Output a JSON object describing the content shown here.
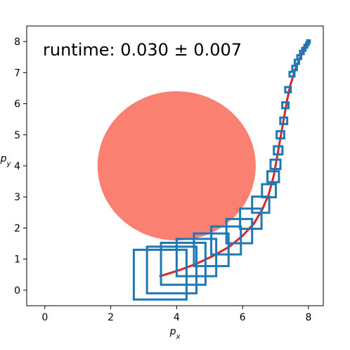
{
  "chart_data": {
    "type": "scatter",
    "title": "",
    "annotation": "runtime: 0.030 ± 0.007",
    "xlabel_base": "p",
    "xlabel_sub": "x",
    "ylabel_base": "p",
    "ylabel_sub": "y",
    "xlim": [
      -0.55,
      8.45
    ],
    "ylim": [
      -0.5,
      8.5
    ],
    "xticks": [
      0,
      2,
      4,
      6,
      8
    ],
    "yticks": [
      0,
      1,
      2,
      3,
      4,
      5,
      6,
      7,
      8
    ],
    "grid": false,
    "obstacle": {
      "cx": 4.0,
      "cy": 4.0,
      "rx": 2.4,
      "ry": 2.4,
      "color": "#fa8072"
    },
    "trajectory": {
      "color": "#d62728",
      "x": [
        3.5,
        4.1,
        4.6,
        5.1,
        5.6,
        6.0,
        6.35,
        6.6,
        6.8,
        6.95,
        7.05,
        7.15,
        7.25,
        7.35,
        7.45,
        7.6,
        7.75,
        7.9,
        8.0
      ],
      "y": [
        0.45,
        0.65,
        0.85,
        1.1,
        1.4,
        1.75,
        2.15,
        2.6,
        3.1,
        3.7,
        4.3,
        4.9,
        5.5,
        6.1,
        6.6,
        7.1,
        7.5,
        7.8,
        8.0
      ]
    },
    "boxes": {
      "color": "#1f77b4",
      "items": [
        {
          "cx": 3.5,
          "cy": 0.5,
          "size": 1.6
        },
        {
          "cx": 3.85,
          "cy": 0.65,
          "size": 1.5
        },
        {
          "cx": 4.2,
          "cy": 0.85,
          "size": 1.35
        },
        {
          "cx": 4.6,
          "cy": 1.05,
          "size": 1.2
        },
        {
          "cx": 5.05,
          "cy": 1.3,
          "size": 1.05
        },
        {
          "cx": 5.5,
          "cy": 1.6,
          "size": 0.9
        },
        {
          "cx": 5.9,
          "cy": 1.9,
          "size": 0.78
        },
        {
          "cx": 6.25,
          "cy": 2.3,
          "size": 0.65
        },
        {
          "cx": 6.55,
          "cy": 2.75,
          "size": 0.52
        },
        {
          "cx": 6.8,
          "cy": 3.2,
          "size": 0.42
        },
        {
          "cx": 6.93,
          "cy": 3.65,
          "size": 0.35
        },
        {
          "cx": 7.0,
          "cy": 4.05,
          "size": 0.3
        },
        {
          "cx": 7.08,
          "cy": 4.5,
          "size": 0.26
        },
        {
          "cx": 7.15,
          "cy": 5.0,
          "size": 0.23
        },
        {
          "cx": 7.25,
          "cy": 5.45,
          "size": 0.21
        },
        {
          "cx": 7.3,
          "cy": 5.95,
          "size": 0.19
        },
        {
          "cx": 7.38,
          "cy": 6.45,
          "size": 0.17
        },
        {
          "cx": 7.5,
          "cy": 6.95,
          "size": 0.15
        },
        {
          "cx": 7.58,
          "cy": 7.15,
          "size": 0.14
        },
        {
          "cx": 7.65,
          "cy": 7.35,
          "size": 0.13
        },
        {
          "cx": 7.72,
          "cy": 7.5,
          "size": 0.12
        },
        {
          "cx": 7.8,
          "cy": 7.65,
          "size": 0.11
        },
        {
          "cx": 7.86,
          "cy": 7.75,
          "size": 0.1
        },
        {
          "cx": 7.92,
          "cy": 7.85,
          "size": 0.09
        },
        {
          "cx": 7.97,
          "cy": 7.93,
          "size": 0.08
        },
        {
          "cx": 8.0,
          "cy": 8.0,
          "size": 0.08
        }
      ]
    }
  }
}
